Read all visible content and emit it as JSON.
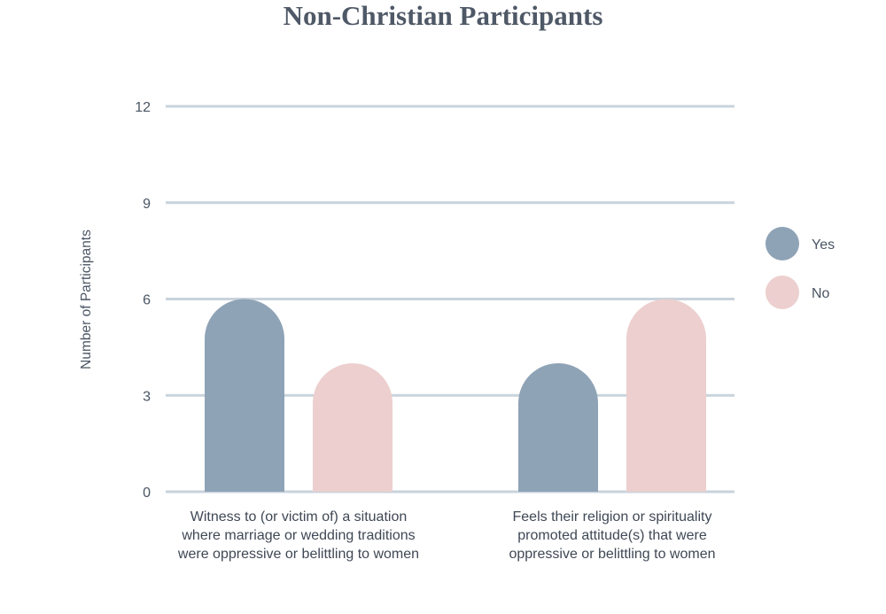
{
  "chart_data": {
    "type": "bar",
    "title": "Non-Christian Participants",
    "xlabel": "",
    "ylabel": "Number of Participants",
    "ylim": [
      0,
      12
    ],
    "yticks": [
      0,
      3,
      6,
      9,
      12
    ],
    "grid": true,
    "legend_position": "right",
    "categories": [
      [
        "Witness to (or victim of) a situation",
        "where marriage or wedding traditions",
        "were oppressive or belittling to women"
      ],
      [
        "Feels their religion or spirituality",
        "promoted attitude(s) that were",
        "oppressive or belittling to women"
      ]
    ],
    "series": [
      {
        "name": "Yes",
        "color": "#8fa3b6",
        "values": [
          6,
          4
        ]
      },
      {
        "name": "No",
        "color": "#eccfce",
        "values": [
          4,
          6
        ]
      }
    ],
    "gridline_color": "#c9d3dc"
  }
}
